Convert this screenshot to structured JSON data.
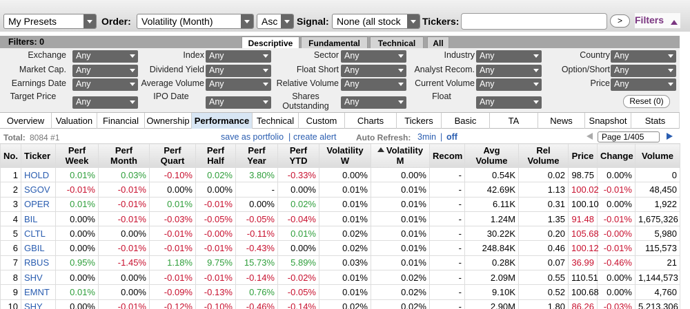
{
  "toolbar": {
    "presets": "My Presets",
    "order_label": "Order:",
    "order": "Volatility (Month)",
    "direction": "Asc",
    "signal_label": "Signal:",
    "signal": "None (all stock",
    "tickers_label": "Tickers:",
    "go": ">",
    "filters": "Filters"
  },
  "filters": {
    "label": "Filters: 0",
    "tabs": [
      "Descriptive",
      "Fundamental",
      "Technical",
      "All"
    ],
    "rows": [
      [
        {
          "label": "Exchange",
          "value": "Any"
        },
        {
          "label": "Index",
          "value": "Any"
        },
        {
          "label": "Sector",
          "value": "Any"
        },
        {
          "label": "Industry",
          "value": "Any"
        },
        {
          "label": "Country",
          "value": "Any"
        }
      ],
      [
        {
          "label": "Market Cap.",
          "value": "Any"
        },
        {
          "label": "Dividend Yield",
          "value": "Any"
        },
        {
          "label": "Float Short",
          "value": "Any"
        },
        {
          "label": "Analyst Recom.",
          "value": "Any"
        },
        {
          "label": "Option/Short",
          "value": "Any"
        }
      ],
      [
        {
          "label": "Earnings Date",
          "value": "Any"
        },
        {
          "label": "Average Volume",
          "value": "Any"
        },
        {
          "label": "Relative Volume",
          "value": "Any"
        },
        {
          "label": "Current Volume",
          "value": "Any"
        },
        {
          "label": "Price",
          "value": "Any"
        }
      ],
      [
        {
          "label": "Target Price",
          "value": "Any"
        },
        {
          "label": "IPO Date",
          "value": "Any"
        },
        {
          "label": "Shares Outstanding",
          "value": "Any"
        },
        {
          "label": "Float",
          "value": "Any"
        }
      ]
    ],
    "reset": "Reset (0)"
  },
  "views": [
    "Overview",
    "Valuation",
    "Financial",
    "Ownership",
    "Performance",
    "Technical",
    "Custom",
    "Charts",
    "Tickers",
    "Basic",
    "TA",
    "News",
    "Snapshot",
    "Stats"
  ],
  "info": {
    "total_label": "Total:",
    "total": "8084 #1",
    "save": "save as portfolio",
    "sep": "|",
    "alert": "create alert",
    "refresh_label": "Auto Refresh:",
    "refresh": "3min",
    "off": "off",
    "page": "Page 1/405"
  },
  "table": {
    "columns": [
      [
        "No."
      ],
      [
        "Ticker"
      ],
      [
        "Perf",
        "Week"
      ],
      [
        "Perf",
        "Month"
      ],
      [
        "Perf",
        "Quart"
      ],
      [
        "Perf",
        "Half"
      ],
      [
        "Perf",
        "Year"
      ],
      [
        "Perf",
        "YTD"
      ],
      [
        "Volatility",
        "W"
      ],
      [
        "Volatility",
        "M"
      ],
      [
        "Recom"
      ],
      [
        "Avg",
        "Volume"
      ],
      [
        "Rel",
        "Volume"
      ],
      [
        "Price"
      ],
      [
        "Change"
      ],
      [
        "Volume"
      ]
    ],
    "rows": [
      [
        "1",
        "HOLD",
        "0.01%",
        "0.03%",
        "-0.10%",
        "0.02%",
        "3.80%",
        "-0.33%",
        "0.00%",
        "0.00%",
        "-",
        "0.54K",
        "0.02",
        "98.75",
        "0.00%",
        "0"
      ],
      [
        "2",
        "SGOV",
        "-0.01%",
        "-0.01%",
        "0.00%",
        "0.00%",
        "-",
        "0.00%",
        "0.01%",
        "0.01%",
        "-",
        "42.69K",
        "1.13",
        "100.02",
        "-0.01%",
        "48,450"
      ],
      [
        "3",
        "OPER",
        "0.01%",
        "-0.01%",
        "0.01%",
        "-0.01%",
        "0.00%",
        "0.02%",
        "0.01%",
        "0.01%",
        "-",
        "6.11K",
        "0.31",
        "100.10",
        "0.00%",
        "1,922"
      ],
      [
        "4",
        "BIL",
        "0.00%",
        "-0.01%",
        "-0.03%",
        "-0.05%",
        "-0.05%",
        "-0.04%",
        "0.01%",
        "0.01%",
        "-",
        "1.24M",
        "1.35",
        "91.48",
        "-0.01%",
        "1,675,326"
      ],
      [
        "5",
        "CLTL",
        "0.00%",
        "0.00%",
        "-0.01%",
        "-0.00%",
        "-0.11%",
        "0.01%",
        "0.02%",
        "0.01%",
        "-",
        "30.22K",
        "0.20",
        "105.68",
        "-0.00%",
        "5,980"
      ],
      [
        "6",
        "GBIL",
        "0.00%",
        "-0.01%",
        "-0.01%",
        "-0.01%",
        "-0.43%",
        "0.00%",
        "0.02%",
        "0.01%",
        "-",
        "248.84K",
        "0.46",
        "100.12",
        "-0.01%",
        "115,573"
      ],
      [
        "7",
        "RBUS",
        "0.95%",
        "-1.45%",
        "1.18%",
        "9.75%",
        "15.73%",
        "5.89%",
        "0.03%",
        "0.01%",
        "-",
        "0.28K",
        "0.07",
        "36.99",
        "-0.46%",
        "21"
      ],
      [
        "8",
        "SHV",
        "0.00%",
        "0.00%",
        "-0.01%",
        "-0.01%",
        "-0.14%",
        "-0.02%",
        "0.01%",
        "0.02%",
        "-",
        "2.09M",
        "0.55",
        "110.51",
        "0.00%",
        "1,144,573"
      ],
      [
        "9",
        "EMNT",
        "0.01%",
        "0.00%",
        "-0.09%",
        "-0.13%",
        "0.76%",
        "-0.05%",
        "0.01%",
        "0.02%",
        "-",
        "9.10K",
        "0.52",
        "100.68",
        "0.00%",
        "4,760"
      ],
      [
        "10",
        "SHY",
        "0.00%",
        "-0.01%",
        "-0.12%",
        "-0.10%",
        "-0.46%",
        "-0.14%",
        "0.02%",
        "0.02%",
        "-",
        "2.90M",
        "1.80",
        "86.26",
        "-0.03%",
        "5,213,306"
      ]
    ]
  }
}
